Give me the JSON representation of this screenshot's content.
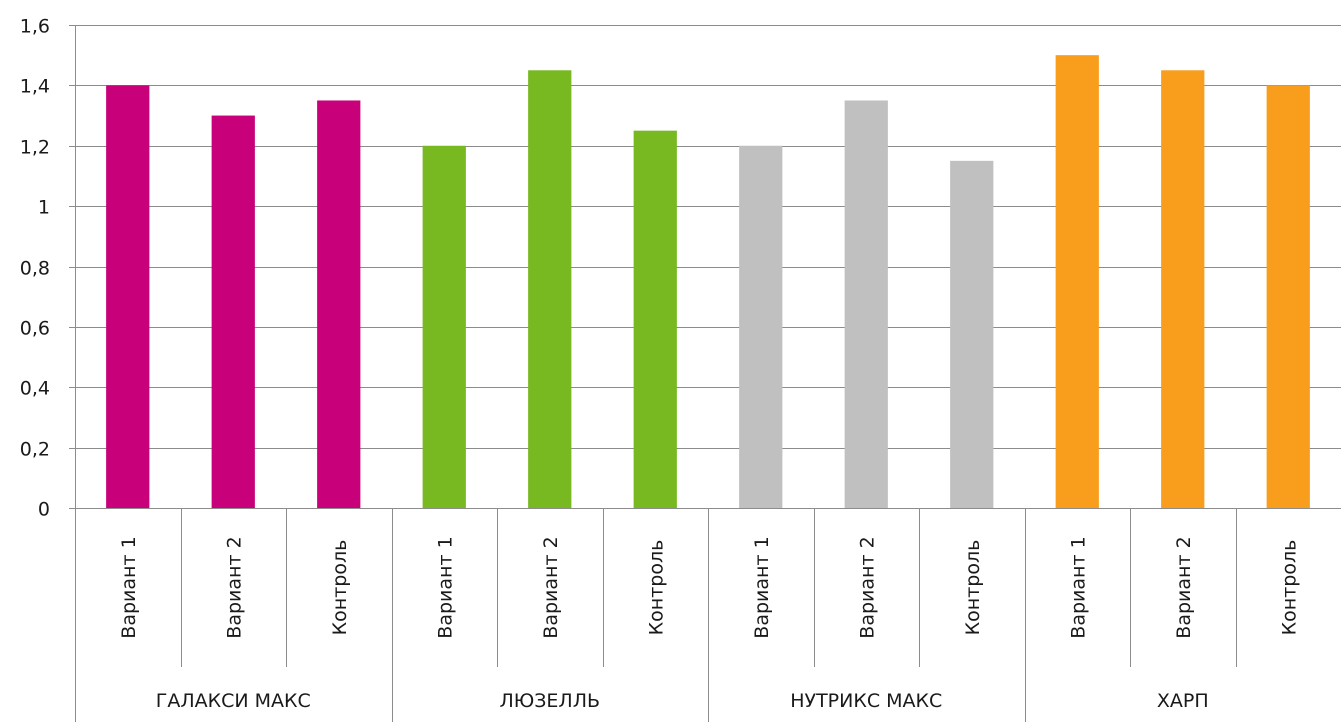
{
  "chart_data": {
    "type": "bar",
    "ylim": [
      0,
      1.6
    ],
    "yticks": [
      "0",
      "0,2",
      "0,4",
      "0,6",
      "0,8",
      "1",
      "1,2",
      "1,4",
      "1,6"
    ],
    "grid": true,
    "groups": [
      {
        "name": "ГАЛАКСИ МАКС",
        "color": "#c8007a",
        "categories": [
          "Вариант 1",
          "Вариант 2",
          "Контроль"
        ],
        "values": [
          1.4,
          1.3,
          1.35
        ]
      },
      {
        "name": "ЛЮЗЕЛЛЬ",
        "color": "#78b922",
        "categories": [
          "Вариант 1",
          "Вариант 2",
          "Контроль"
        ],
        "values": [
          1.2,
          1.45,
          1.25
        ]
      },
      {
        "name": "НУТРИКС МАКС",
        "color": "#c0c0c0",
        "categories": [
          "Вариант 1",
          "Вариант 2",
          "Контроль"
        ],
        "values": [
          1.2,
          1.35,
          1.15
        ]
      },
      {
        "name": "ХАРП",
        "color": "#f99d1c",
        "categories": [
          "Вариант 1",
          "Вариант 2",
          "Контроль"
        ],
        "values": [
          1.5,
          1.45,
          1.4
        ]
      }
    ]
  }
}
